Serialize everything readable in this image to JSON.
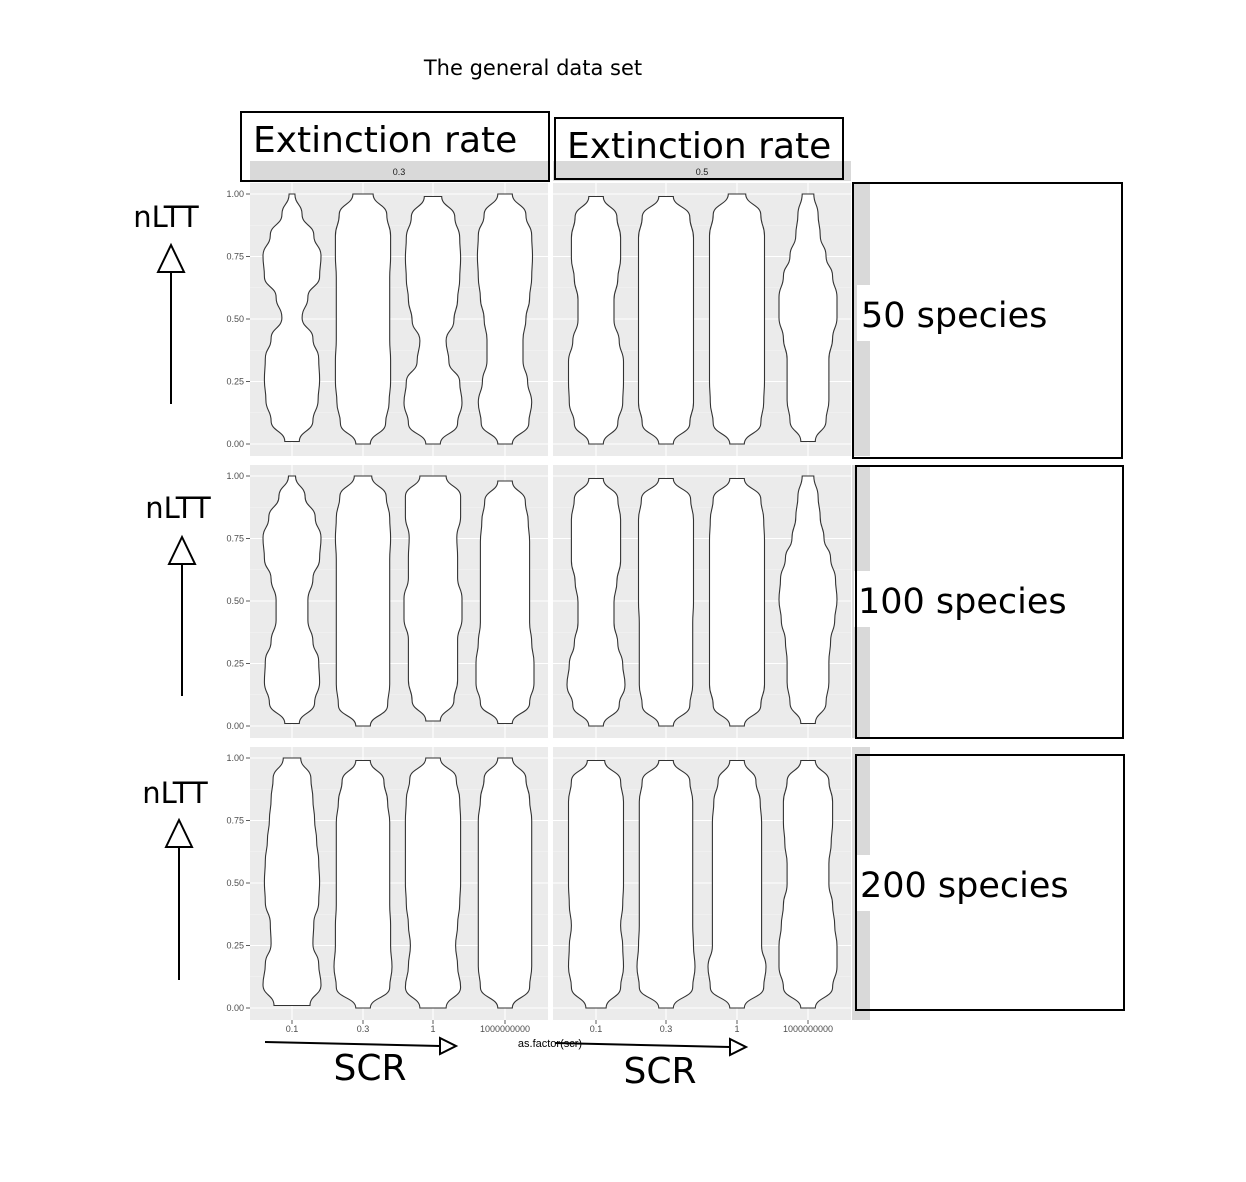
{
  "chart_data": {
    "type": "violin",
    "title": "The general data set",
    "xlabel": "as.factor(scr)",
    "ylabel": "",
    "categories": [
      "0.1",
      "0.3",
      "1",
      "1000000000"
    ],
    "y_ticks": [
      "0.00",
      "0.25",
      "0.50",
      "0.75",
      "1.00"
    ],
    "ylim": [
      0,
      1
    ],
    "grid": true,
    "col_strips": [
      "0.3",
      "0.5"
    ],
    "col_annotations": [
      "Extinction rate",
      "Extinction rate"
    ],
    "row_annotations": [
      "50 species",
      "100 species",
      "200 species"
    ],
    "y_annotation": "nLTT",
    "x_annotation": "SCR",
    "panels": [
      {
        "row": 0,
        "col": 0,
        "violins": [
          {
            "category": "0.1",
            "min": 0.01,
            "max": 1.0,
            "widths": [
              0.25,
              0.72,
              0.9,
              0.95,
              0.92,
              0.72,
              0.35,
              0.55,
              0.95,
              1.0,
              0.75,
              0.35,
              0.1
            ]
          },
          {
            "category": "0.3",
            "min": 0.0,
            "max": 1.0,
            "widths": [
              0.25,
              0.78,
              0.9,
              0.95,
              0.95,
              0.92,
              0.92,
              0.92,
              0.92,
              0.95,
              0.95,
              0.82,
              0.35
            ]
          },
          {
            "category": "1",
            "min": 0.0,
            "max": 0.99,
            "widths": [
              0.25,
              0.85,
              1.0,
              0.92,
              0.55,
              0.45,
              0.72,
              0.85,
              0.92,
              0.95,
              0.92,
              0.75,
              0.3
            ]
          },
          {
            "category": "1000000000",
            "min": 0.0,
            "max": 1.0,
            "widths": [
              0.25,
              0.82,
              0.92,
              0.78,
              0.62,
              0.62,
              0.72,
              0.85,
              0.92,
              0.95,
              0.92,
              0.72,
              0.25
            ]
          }
        ]
      },
      {
        "row": 0,
        "col": 1,
        "violins": [
          {
            "category": "0.1",
            "min": 0.0,
            "max": 0.99,
            "widths": [
              0.25,
              0.75,
              0.92,
              0.95,
              0.95,
              0.8,
              0.62,
              0.62,
              0.75,
              0.85,
              0.85,
              0.72,
              0.25
            ]
          },
          {
            "category": "0.3",
            "min": 0.0,
            "max": 0.99,
            "widths": [
              0.25,
              0.82,
              0.95,
              0.95,
              0.95,
              0.95,
              0.95,
              0.95,
              0.95,
              0.95,
              0.95,
              0.82,
              0.25
            ]
          },
          {
            "category": "1",
            "min": 0.0,
            "max": 1.0,
            "widths": [
              0.25,
              0.82,
              0.92,
              0.95,
              0.95,
              0.95,
              0.95,
              0.95,
              0.95,
              0.95,
              0.95,
              0.82,
              0.3
            ]
          },
          {
            "category": "1000000000",
            "min": 0.01,
            "max": 1.0,
            "widths": [
              0.25,
              0.62,
              0.72,
              0.72,
              0.72,
              0.85,
              1.0,
              1.0,
              0.85,
              0.62,
              0.42,
              0.35,
              0.2
            ]
          }
        ]
      },
      {
        "row": 1,
        "col": 0,
        "violins": [
          {
            "category": "0.1",
            "min": 0.01,
            "max": 1.0,
            "widths": [
              0.25,
              0.78,
              0.95,
              0.92,
              0.72,
              0.55,
              0.55,
              0.72,
              0.95,
              1.0,
              0.8,
              0.45,
              0.12
            ]
          },
          {
            "category": "0.3",
            "min": 0.0,
            "max": 1.0,
            "widths": [
              0.25,
              0.85,
              0.92,
              0.92,
              0.92,
              0.92,
              0.92,
              0.92,
              0.92,
              0.95,
              0.92,
              0.8,
              0.3
            ]
          },
          {
            "category": "1",
            "min": 0.02,
            "max": 1.0,
            "widths": [
              0.25,
              0.72,
              0.85,
              0.85,
              0.85,
              1.0,
              1.0,
              0.85,
              0.85,
              0.82,
              0.95,
              0.95,
              0.45
            ]
          },
          {
            "category": "1000000000",
            "min": 0.01,
            "max": 0.98,
            "widths": [
              0.25,
              0.85,
              1.0,
              1.0,
              0.92,
              0.85,
              0.85,
              0.85,
              0.85,
              0.85,
              0.8,
              0.7,
              0.25
            ]
          }
        ]
      },
      {
        "row": 1,
        "col": 1,
        "violins": [
          {
            "category": "0.1",
            "min": 0.0,
            "max": 0.99,
            "widths": [
              0.25,
              0.8,
              1.0,
              0.92,
              0.75,
              0.62,
              0.62,
              0.72,
              0.85,
              0.85,
              0.85,
              0.75,
              0.25
            ]
          },
          {
            "category": "0.3",
            "min": 0.0,
            "max": 0.99,
            "widths": [
              0.25,
              0.82,
              0.92,
              0.92,
              0.92,
              0.92,
              0.95,
              0.95,
              0.95,
              0.95,
              0.95,
              0.85,
              0.25
            ]
          },
          {
            "category": "1",
            "min": 0.0,
            "max": 0.99,
            "widths": [
              0.25,
              0.82,
              0.95,
              0.95,
              0.95,
              0.95,
              0.95,
              0.95,
              0.95,
              0.95,
              0.92,
              0.82,
              0.25
            ]
          },
          {
            "category": "1000000000",
            "min": 0.01,
            "max": 1.0,
            "widths": [
              0.25,
              0.62,
              0.72,
              0.72,
              0.78,
              0.92,
              1.0,
              0.95,
              0.78,
              0.55,
              0.42,
              0.35,
              0.2
            ]
          }
        ]
      },
      {
        "row": 2,
        "col": 0,
        "violins": [
          {
            "category": "0.1",
            "min": 0.01,
            "max": 1.0,
            "widths": [
              0.62,
              1.0,
              0.92,
              0.72,
              0.75,
              0.92,
              0.95,
              0.92,
              0.85,
              0.78,
              0.72,
              0.65,
              0.3
            ]
          },
          {
            "category": "0.3",
            "min": 0.0,
            "max": 0.99,
            "widths": [
              0.25,
              0.92,
              1.0,
              0.95,
              0.95,
              0.92,
              0.92,
              0.92,
              0.92,
              0.92,
              0.85,
              0.72,
              0.25
            ]
          },
          {
            "category": "1",
            "min": 0.0,
            "max": 1.0,
            "widths": [
              0.45,
              0.95,
              0.85,
              0.78,
              0.85,
              0.92,
              0.95,
              0.95,
              0.95,
              0.95,
              0.92,
              0.8,
              0.25
            ]
          },
          {
            "category": "1000000000",
            "min": 0.0,
            "max": 1.0,
            "widths": [
              0.25,
              0.85,
              0.92,
              0.92,
              0.92,
              0.92,
              0.92,
              0.92,
              0.92,
              0.92,
              0.85,
              0.72,
              0.25
            ]
          }
        ]
      },
      {
        "row": 2,
        "col": 1,
        "violins": [
          {
            "category": "0.1",
            "min": 0.0,
            "max": 0.99,
            "widths": [
              0.35,
              0.85,
              0.95,
              0.92,
              0.85,
              0.92,
              0.95,
              0.95,
              0.95,
              0.95,
              0.95,
              0.85,
              0.3
            ]
          },
          {
            "category": "0.3",
            "min": 0.0,
            "max": 0.99,
            "widths": [
              0.25,
              0.92,
              1.0,
              0.95,
              0.92,
              0.92,
              0.92,
              0.92,
              0.92,
              0.92,
              0.92,
              0.82,
              0.25
            ]
          },
          {
            "category": "1",
            "min": 0.0,
            "max": 0.99,
            "widths": [
              0.25,
              0.92,
              1.0,
              0.85,
              0.85,
              0.85,
              0.85,
              0.85,
              0.85,
              0.85,
              0.8,
              0.65,
              0.25
            ]
          },
          {
            "category": "1000000000",
            "min": 0.0,
            "max": 0.99,
            "widths": [
              0.25,
              0.85,
              1.0,
              1.0,
              0.92,
              0.85,
              0.72,
              0.72,
              0.8,
              0.85,
              0.85,
              0.72,
              0.25
            ]
          }
        ]
      }
    ]
  }
}
